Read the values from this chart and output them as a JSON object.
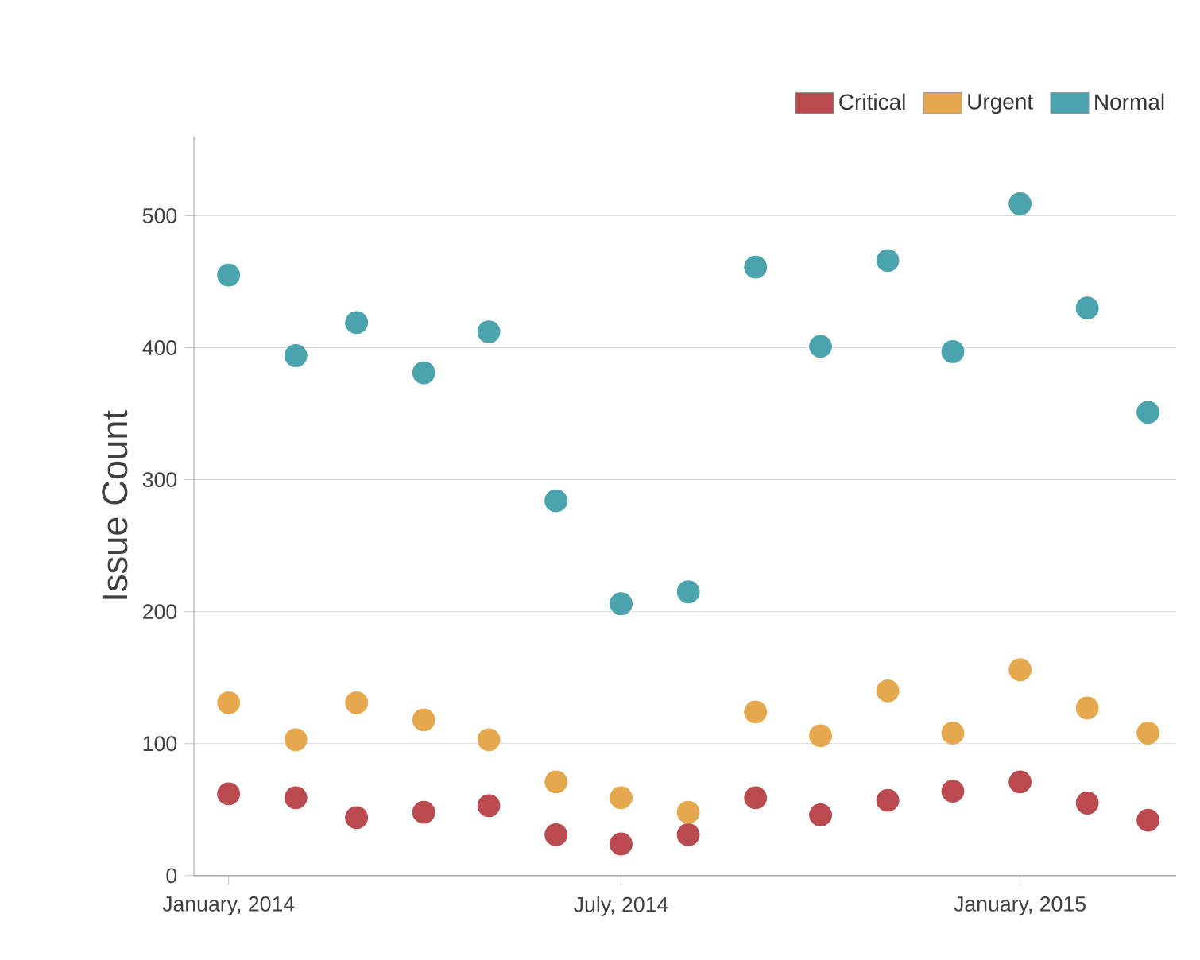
{
  "chart_data": {
    "type": "scatter",
    "ylabel": "Issue Count",
    "x": [
      "2014-01",
      "2014-02",
      "2014-03",
      "2014-04",
      "2014-05",
      "2014-06",
      "2014-07",
      "2014-08",
      "2014-09",
      "2014-10",
      "2014-11",
      "2014-12",
      "2015-01",
      "2015-02",
      "2015-03"
    ],
    "series": [
      {
        "name": "Critical",
        "color": "#b94a4f",
        "values": [
          62,
          59,
          44,
          48,
          53,
          31,
          24,
          31,
          59,
          46,
          57,
          64,
          71,
          55,
          42
        ]
      },
      {
        "name": "Urgent",
        "color": "#e5a84e",
        "values": [
          131,
          103,
          131,
          118,
          103,
          71,
          59,
          48,
          124,
          106,
          140,
          108,
          156,
          127,
          108
        ]
      },
      {
        "name": "Normal",
        "color": "#4aa3ad",
        "values": [
          455,
          394,
          419,
          381,
          412,
          284,
          206,
          215,
          461,
          401,
          466,
          397,
          509,
          430,
          351
        ]
      }
    ],
    "xlim": [
      "2013-12-16",
      "2015-03-14"
    ],
    "xticks": [
      {
        "value": "2014-01",
        "label": "January, 2014"
      },
      {
        "value": "2014-07",
        "label": "July, 2014"
      },
      {
        "value": "2015-01",
        "label": "January, 2015"
      }
    ],
    "ylim": [
      0,
      560
    ],
    "yticks": [
      0,
      100,
      200,
      300,
      400,
      500
    ],
    "grid": "y",
    "legend": "top right",
    "marker": "circle"
  }
}
